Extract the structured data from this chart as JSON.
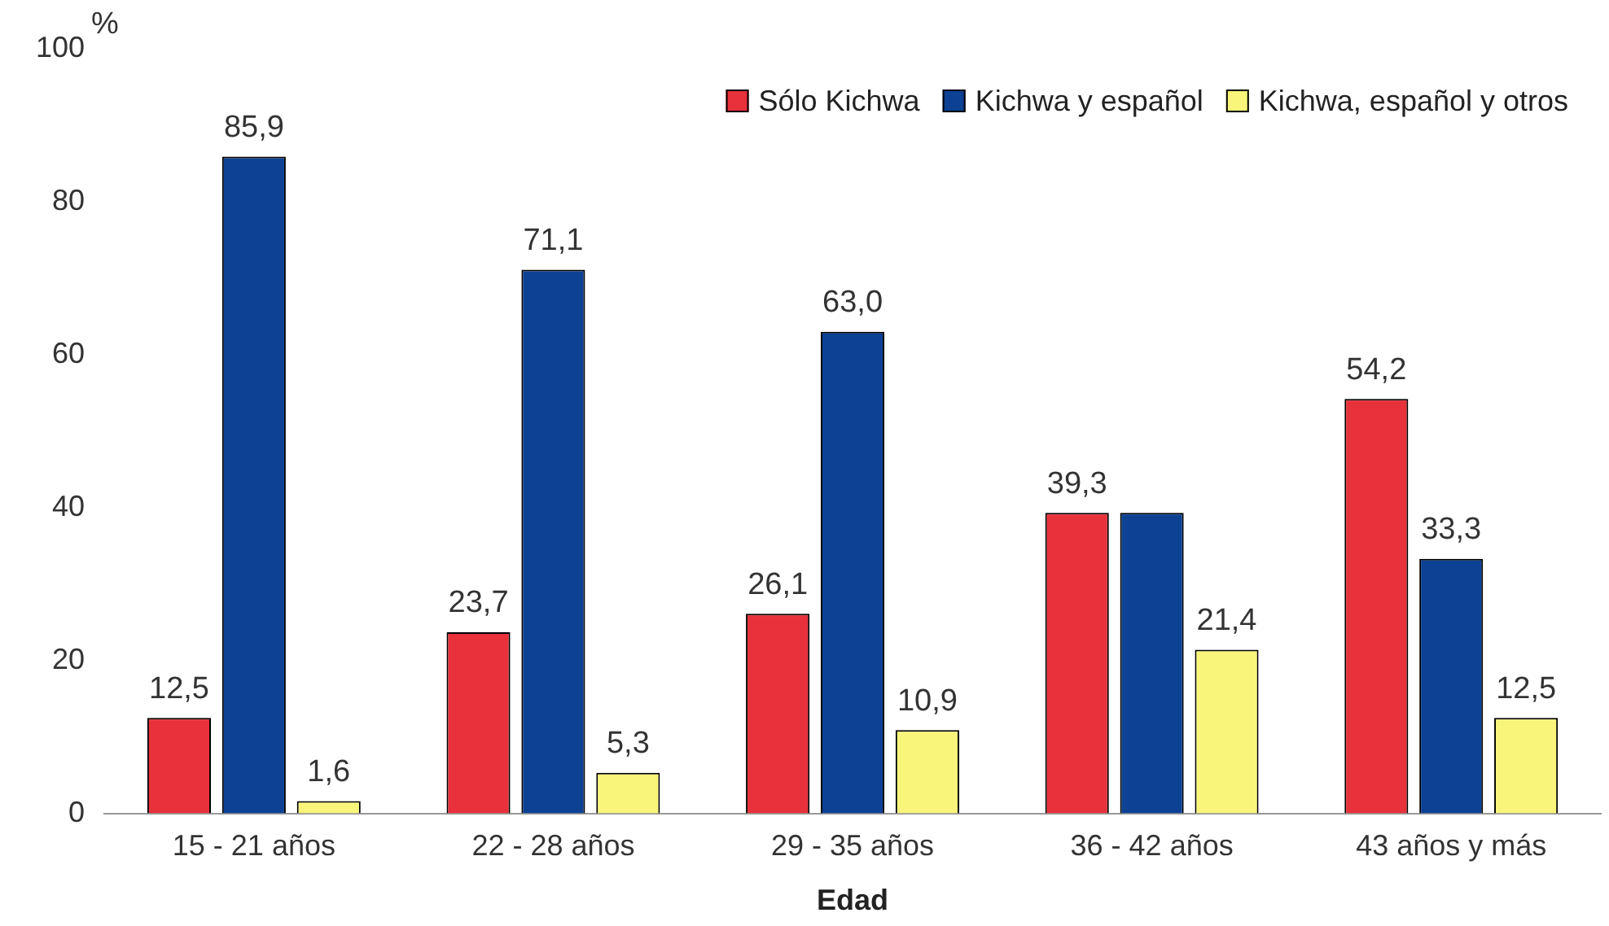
{
  "chart_data": {
    "type": "bar",
    "xlabel": "Edad",
    "ylabel": "%",
    "categories": [
      "15 - 21 años",
      "22 - 28 años",
      "29 - 35 años",
      "36 - 42 años",
      "43 años y más"
    ],
    "series": [
      {
        "name": "Sólo Kichwa",
        "color": "#e8313b",
        "values": [
          12.5,
          23.7,
          26.1,
          39.3,
          54.2
        ],
        "value_labels": [
          "12,5",
          "23,7",
          "26,1",
          "39,3",
          "54,2"
        ]
      },
      {
        "name": "Kichwa y español",
        "color": "#0c4194",
        "values": [
          85.9,
          71.1,
          63.0,
          39.3,
          33.3
        ],
        "value_labels": [
          "85,9",
          "71,1",
          "63,0",
          null,
          "33,3"
        ]
      },
      {
        "name": "Kichwa, español y otros",
        "color": "#f8f57a",
        "values": [
          1.6,
          5.3,
          10.9,
          21.4,
          12.5
        ],
        "value_labels": [
          "1,6",
          "5,3",
          "10,9",
          "21,4",
          "12,5"
        ]
      }
    ],
    "ylim": [
      0,
      100
    ],
    "yticks": [
      0,
      20,
      40,
      60,
      80,
      100
    ],
    "grid": false,
    "legend": "top right"
  }
}
